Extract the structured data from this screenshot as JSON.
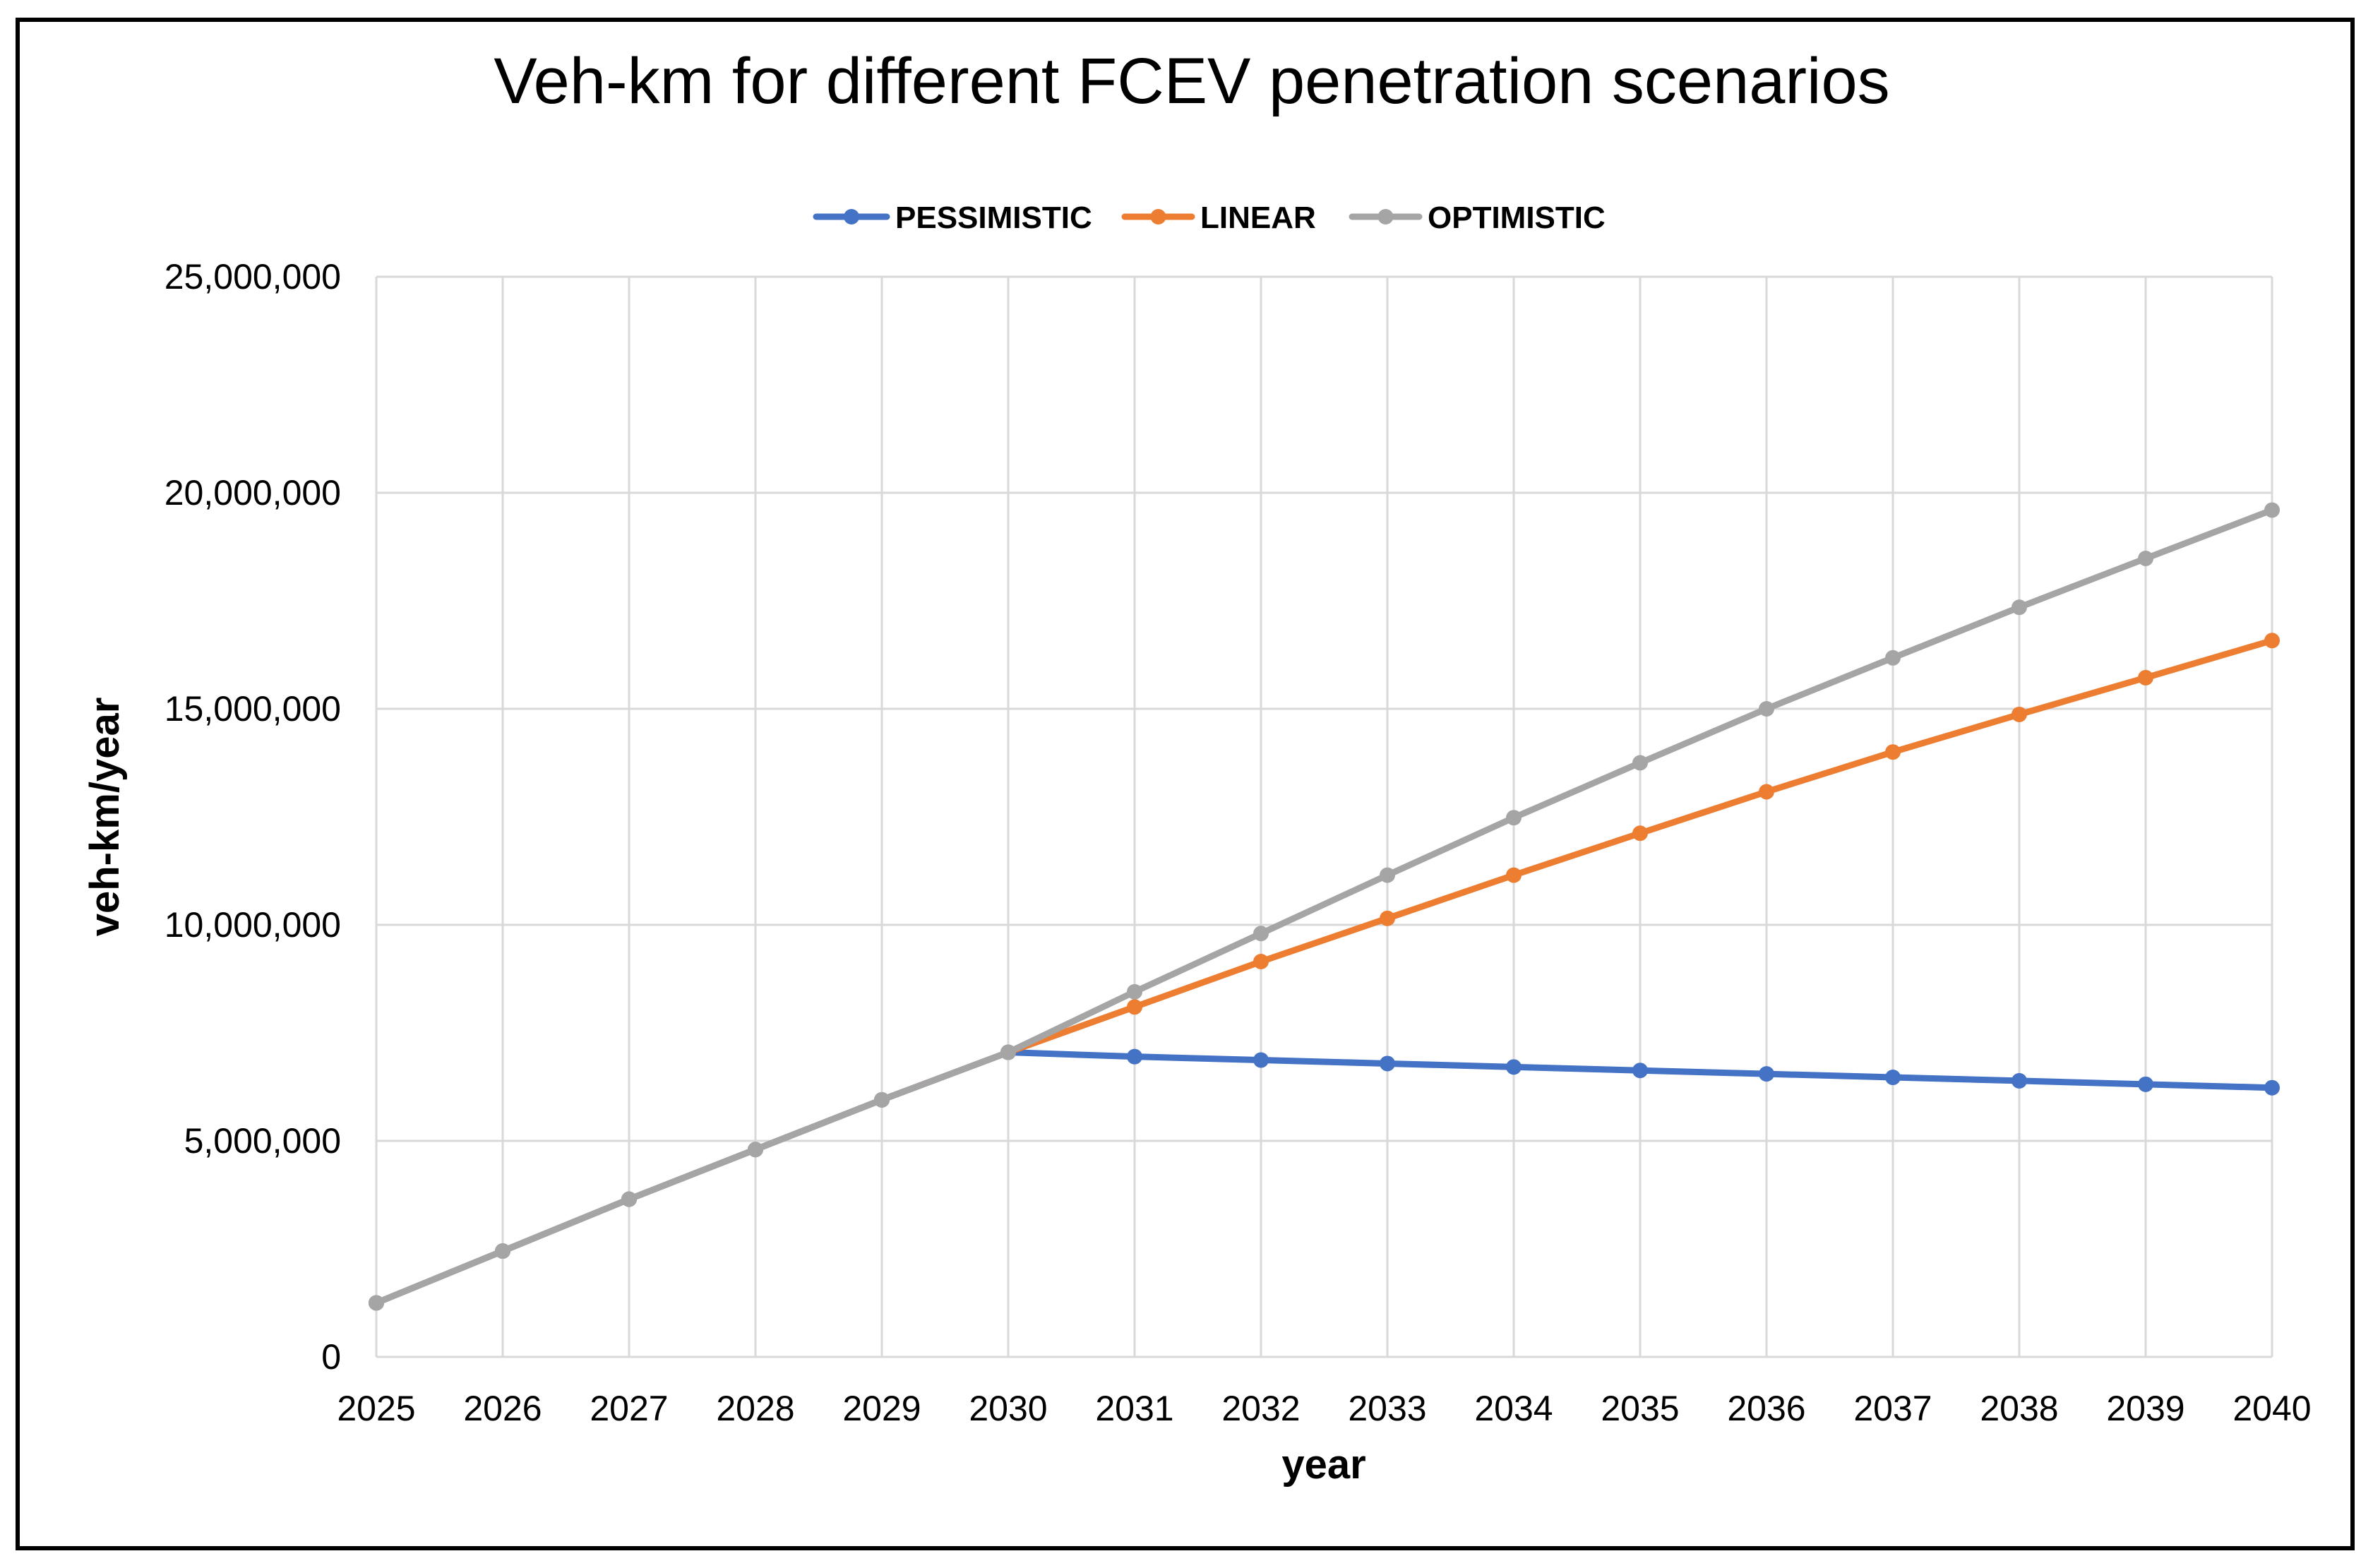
{
  "chart_data": {
    "type": "line",
    "title": "Veh-km for different FCEV penetration scenarios",
    "xlabel": "year",
    "ylabel": "veh-km/year",
    "categories": [
      "2025",
      "2026",
      "2027",
      "2028",
      "2029",
      "2030",
      "2031",
      "2032",
      "2033",
      "2034",
      "2035",
      "2036",
      "2037",
      "2038",
      "2039",
      "2040"
    ],
    "ylim": [
      0,
      25000000
    ],
    "yticks": [
      0,
      5000000,
      10000000,
      15000000,
      20000000,
      25000000
    ],
    "ytick_labels": [
      "0",
      "5,000,000",
      "10,000,000",
      "15,000,000",
      "20,000,000",
      "25,000,000"
    ],
    "grid": true,
    "legend_position": "top",
    "series": [
      {
        "name": "PESSIMISTIC",
        "color": "#4472C4",
        "values": [
          1250000,
          2450000,
          3650000,
          4800000,
          5950000,
          7050000,
          6950000,
          6870000,
          6790000,
          6710000,
          6630000,
          6550000,
          6470000,
          6390000,
          6310000,
          6230000
        ]
      },
      {
        "name": "LINEAR",
        "color": "#ED7D31",
        "values": [
          1250000,
          2450000,
          3650000,
          4800000,
          5950000,
          7050000,
          8100000,
          9150000,
          10150000,
          11150000,
          12120000,
          13080000,
          14000000,
          14870000,
          15720000,
          16580000
        ]
      },
      {
        "name": "OPTIMISTIC",
        "color": "#A5A5A5",
        "values": [
          1250000,
          2450000,
          3650000,
          4800000,
          5950000,
          7050000,
          8450000,
          9800000,
          11150000,
          12480000,
          13750000,
          15000000,
          16180000,
          17350000,
          18480000,
          19600000
        ]
      }
    ]
  }
}
